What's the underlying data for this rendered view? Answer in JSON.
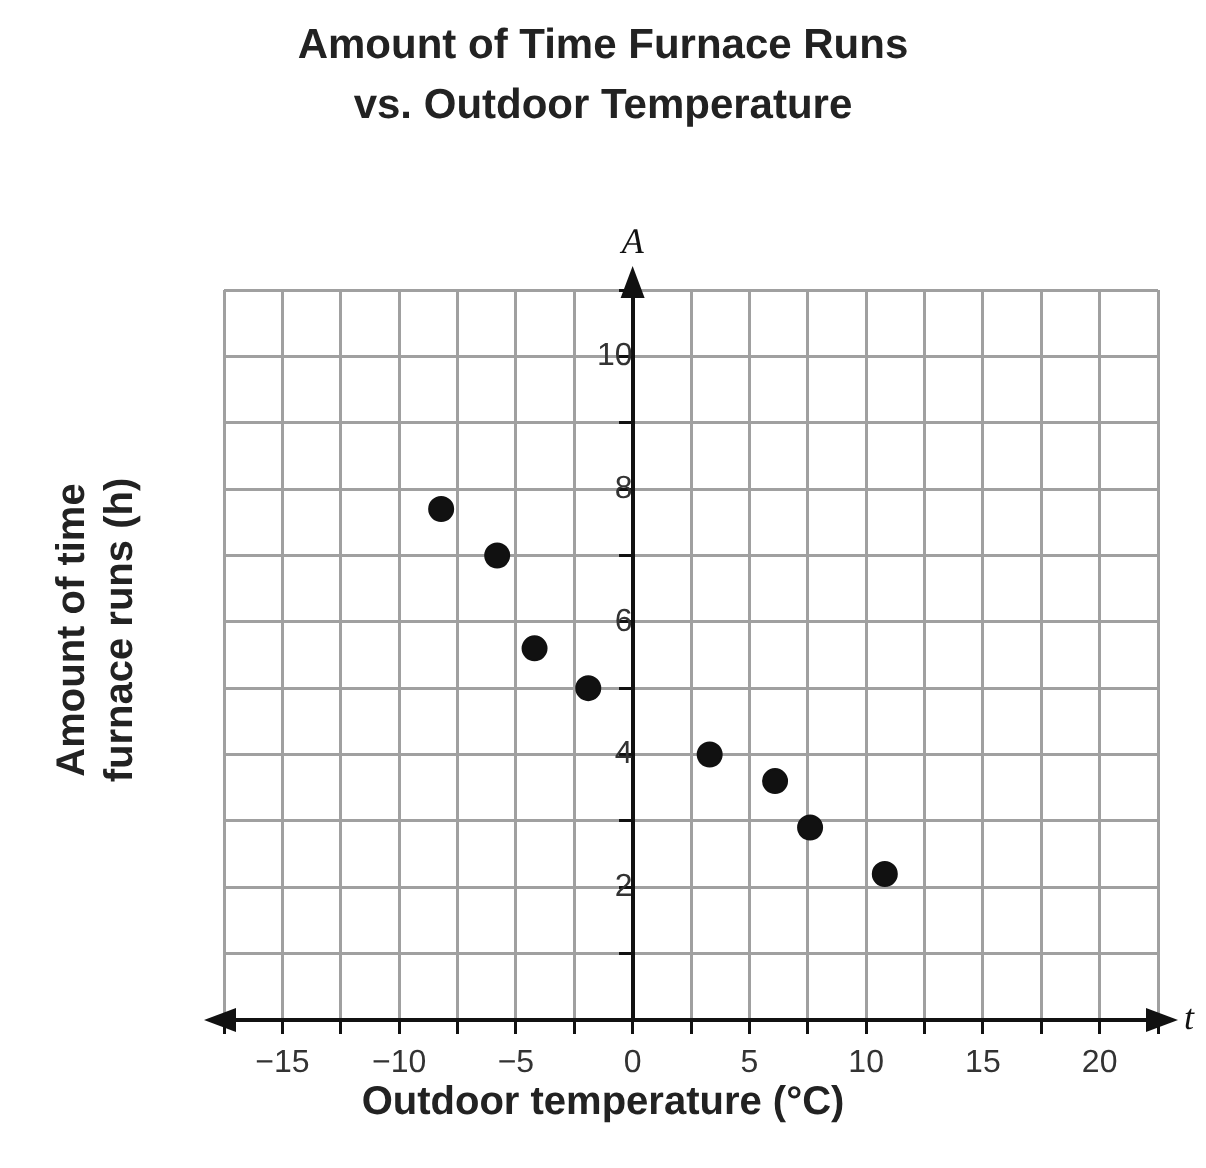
{
  "chart_data": {
    "type": "scatter",
    "title": "Amount of Time Furnace Runs\nvs. Outdoor Temperature",
    "xlabel": "Outdoor temperature (°C)",
    "ylabel": "Amount of time\nfurnace runs (h)",
    "annotations": [
      "A",
      "t"
    ],
    "x": [
      -8.2,
      -5.8,
      -4.2,
      -1.9,
      3.3,
      6.1,
      7.6,
      10.8
    ],
    "series": [
      {
        "color": "#111111",
        "values": [
          7.7,
          7.0,
          5.6,
          5.0,
          4.0,
          3.6,
          2.9,
          2.2
        ]
      }
    ],
    "marker": "circle",
    "grid": true,
    "legend": false,
    "xlim": [
      -17.5,
      22.5
    ],
    "xticks": [
      {
        "value": -17.5,
        "label": null
      },
      {
        "value": -15,
        "label": "−15"
      },
      {
        "value": -12.5,
        "label": null
      },
      {
        "value": -10,
        "label": "−10"
      },
      {
        "value": -7.5,
        "label": null
      },
      {
        "value": -5,
        "label": "−5"
      },
      {
        "value": -2.5,
        "label": null
      },
      0,
      {
        "value": 2.5,
        "label": null
      },
      5,
      {
        "value": 7.5,
        "label": null
      },
      10,
      {
        "value": 12.5,
        "label": null
      },
      15,
      {
        "value": 17.5,
        "label": null
      },
      20,
      {
        "value": 22.5,
        "label": null
      }
    ],
    "ylim": [
      0,
      11
    ],
    "yticks": [
      {
        "value": 0,
        "label": null
      },
      {
        "value": 1,
        "label": null
      },
      2,
      {
        "value": 3,
        "label": null
      },
      4,
      {
        "value": 5,
        "label": null
      },
      6,
      {
        "value": 7,
        "label": null
      },
      8,
      {
        "value": 9,
        "label": null
      },
      10,
      {
        "value": 11,
        "label": null
      }
    ]
  }
}
